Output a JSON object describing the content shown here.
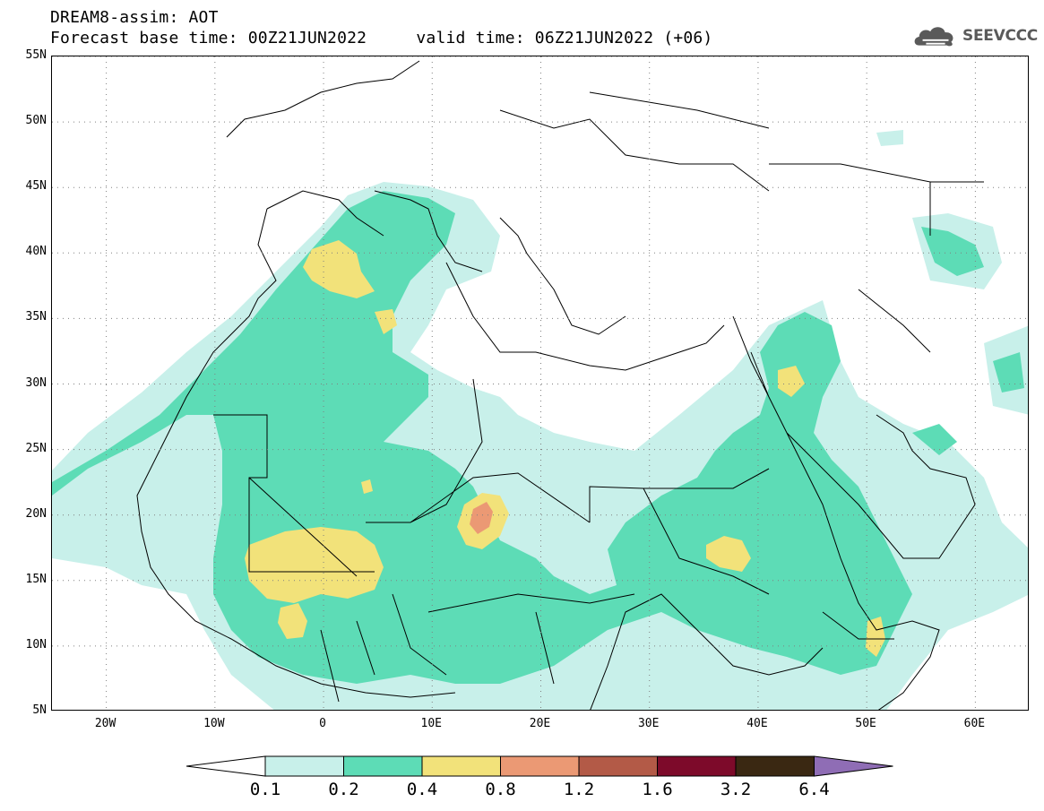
{
  "header": {
    "title_line1": "DREAM8-assim: AOT",
    "title_line2": "Forecast base time: 00Z21JUN2022     valid time: 06Z21JUN2022 (+06)"
  },
  "logo": {
    "text": "SEEVCCC",
    "icon": "cloud-icon",
    "color": "#5a5a5a"
  },
  "map": {
    "lon_range": [
      -25,
      65
    ],
    "lat_range": [
      5,
      55
    ],
    "lat_ticks": [
      {
        "value": 55,
        "label": "55N"
      },
      {
        "value": 50,
        "label": "50N"
      },
      {
        "value": 45,
        "label": "45N"
      },
      {
        "value": 40,
        "label": "40N"
      },
      {
        "value": 35,
        "label": "35N"
      },
      {
        "value": 30,
        "label": "30N"
      },
      {
        "value": 25,
        "label": "25N"
      },
      {
        "value": 20,
        "label": "20N"
      },
      {
        "value": 15,
        "label": "15N"
      },
      {
        "value": 10,
        "label": "10N"
      },
      {
        "value": 5,
        "label": "5N"
      }
    ],
    "lon_ticks": [
      {
        "value": -20,
        "label": "20W"
      },
      {
        "value": -10,
        "label": "10W"
      },
      {
        "value": 0,
        "label": "0"
      },
      {
        "value": 10,
        "label": "10E"
      },
      {
        "value": 20,
        "label": "20E"
      },
      {
        "value": 30,
        "label": "30E"
      },
      {
        "value": 40,
        "label": "40E"
      },
      {
        "value": 50,
        "label": "50E"
      },
      {
        "value": 60,
        "label": "60E"
      }
    ],
    "grid": "dotted"
  },
  "legend": {
    "levels": [
      "0.1",
      "0.2",
      "0.4",
      "0.8",
      "1.2",
      "1.6",
      "3.2",
      "6.4"
    ],
    "colors": [
      "#c8f0ea",
      "#5ddcb6",
      "#f2e27a",
      "#eb9974",
      "#b35a47",
      "#7d0a2a",
      "#3a2812",
      "#8f6db5"
    ],
    "below_color": "#ffffff"
  }
}
